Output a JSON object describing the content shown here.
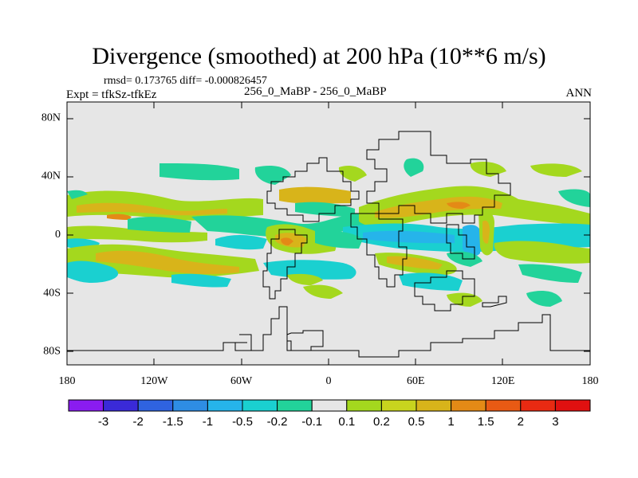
{
  "chart_data": {
    "type": "contour-map",
    "title": "Divergence (smoothed) at 200 hPa (10**6 m/s)",
    "stats_line": "rmsd= 0.173765 diff= -0.000826457",
    "experiment_label": "Expt = tfkSz-tfkEz",
    "case_label": "256_0_MaBP - 256_0_MaBP",
    "period_label": "ANN",
    "xaxis": {
      "ticks": [
        "180",
        "120W",
        "60W",
        "0",
        "60E",
        "120E",
        "180"
      ],
      "range": [
        -180,
        180
      ]
    },
    "yaxis": {
      "ticks": [
        "80N",
        "40N",
        "0",
        "40S",
        "80S"
      ],
      "range": [
        -90,
        90
      ]
    },
    "colorbar": {
      "levels": [
        "-3",
        "-2",
        "-1.5",
        "-1",
        "-0.5",
        "-0.2",
        "-0.1",
        "0.1",
        "0.2",
        "0.5",
        "1",
        "1.5",
        "2",
        "3"
      ],
      "colors": [
        "#8a1cf0",
        "#3a2ad8",
        "#2f63e0",
        "#2e8de4",
        "#26b4ea",
        "#1ad0d0",
        "#22d39a",
        "#e6e6e6",
        "#a4d81e",
        "#c8d41e",
        "#d8b41a",
        "#e48a16",
        "#e85a14",
        "#e82a12",
        "#e01010"
      ]
    },
    "field_regions": [
      {
        "lon": -150,
        "lat": 22,
        "sign": "pos",
        "strength": 2
      },
      {
        "lon": -120,
        "lat": -15,
        "sign": "pos",
        "strength": 1
      },
      {
        "lon": -150,
        "lat": -15,
        "sign": "neg",
        "strength": 1
      },
      {
        "lon": -95,
        "lat": 0,
        "sign": "neg",
        "strength": 1
      },
      {
        "lon": 55,
        "lat": 0,
        "sign": "neg",
        "strength": 2
      },
      {
        "lon": 90,
        "lat": 0,
        "sign": "neg",
        "strength": 2
      },
      {
        "lon": 110,
        "lat": 0,
        "sign": "pos",
        "strength": 2
      },
      {
        "lon": 80,
        "lat": 20,
        "sign": "pos",
        "strength": 2
      },
      {
        "lon": -35,
        "lat": -5,
        "sign": "pos",
        "strength": 3
      },
      {
        "lon": 140,
        "lat": 25,
        "sign": "pos",
        "strength": 1
      }
    ]
  }
}
